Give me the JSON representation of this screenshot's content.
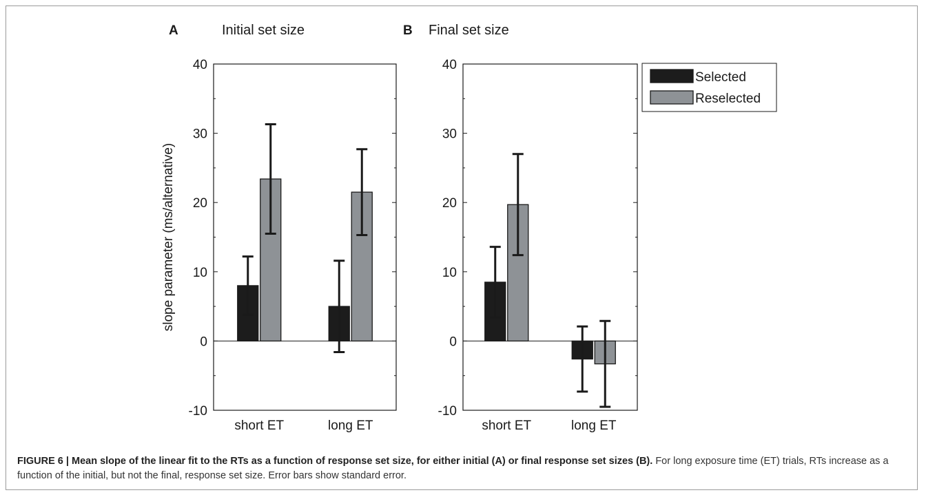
{
  "chart_data": [
    {
      "type": "bar",
      "panel_letter": "A",
      "title": "Initial set size",
      "ylabel": "slope parameter (ms/alternative)",
      "xlabel": "",
      "ylim": [
        -10,
        40
      ],
      "yticks": [
        -10,
        0,
        10,
        20,
        30,
        40
      ],
      "categories": [
        "short ET",
        "long ET"
      ],
      "series": [
        {
          "name": "Selected",
          "color": "#1c1c1c",
          "values": [
            8.0,
            5.0
          ],
          "error": [
            4.2,
            6.6
          ]
        },
        {
          "name": "Reselected",
          "color": "#8e9296",
          "values": [
            23.4,
            21.5
          ],
          "error": [
            7.9,
            6.2
          ]
        }
      ],
      "grid": false,
      "zero_line": true
    },
    {
      "type": "bar",
      "panel_letter": "B",
      "title": "Final set size",
      "ylabel": "",
      "xlabel": "",
      "ylim": [
        -10,
        40
      ],
      "yticks": [
        -10,
        0,
        10,
        20,
        30,
        40
      ],
      "categories": [
        "short ET",
        "long ET"
      ],
      "series": [
        {
          "name": "Selected",
          "color": "#1c1c1c",
          "values": [
            8.5,
            -2.6
          ],
          "error": [
            5.1,
            4.7
          ]
        },
        {
          "name": "Reselected",
          "color": "#8e9296",
          "values": [
            19.7,
            -3.3
          ],
          "error": [
            7.3,
            6.2
          ]
        }
      ],
      "grid": false,
      "zero_line": true,
      "legend": {
        "placement": "right-of-panel-top",
        "entries": [
          "Selected",
          "Reselected"
        ]
      }
    }
  ],
  "caption": {
    "title": "FIGURE 6 | Mean slope of the linear fit to the RTs as a function of response set size, for either initial (A) or final response set sizes (B).",
    "text": " For long exposure time (ET) trials, RTs increase as a function of the initial, but not the final, response set size. Error bars show standard error."
  }
}
